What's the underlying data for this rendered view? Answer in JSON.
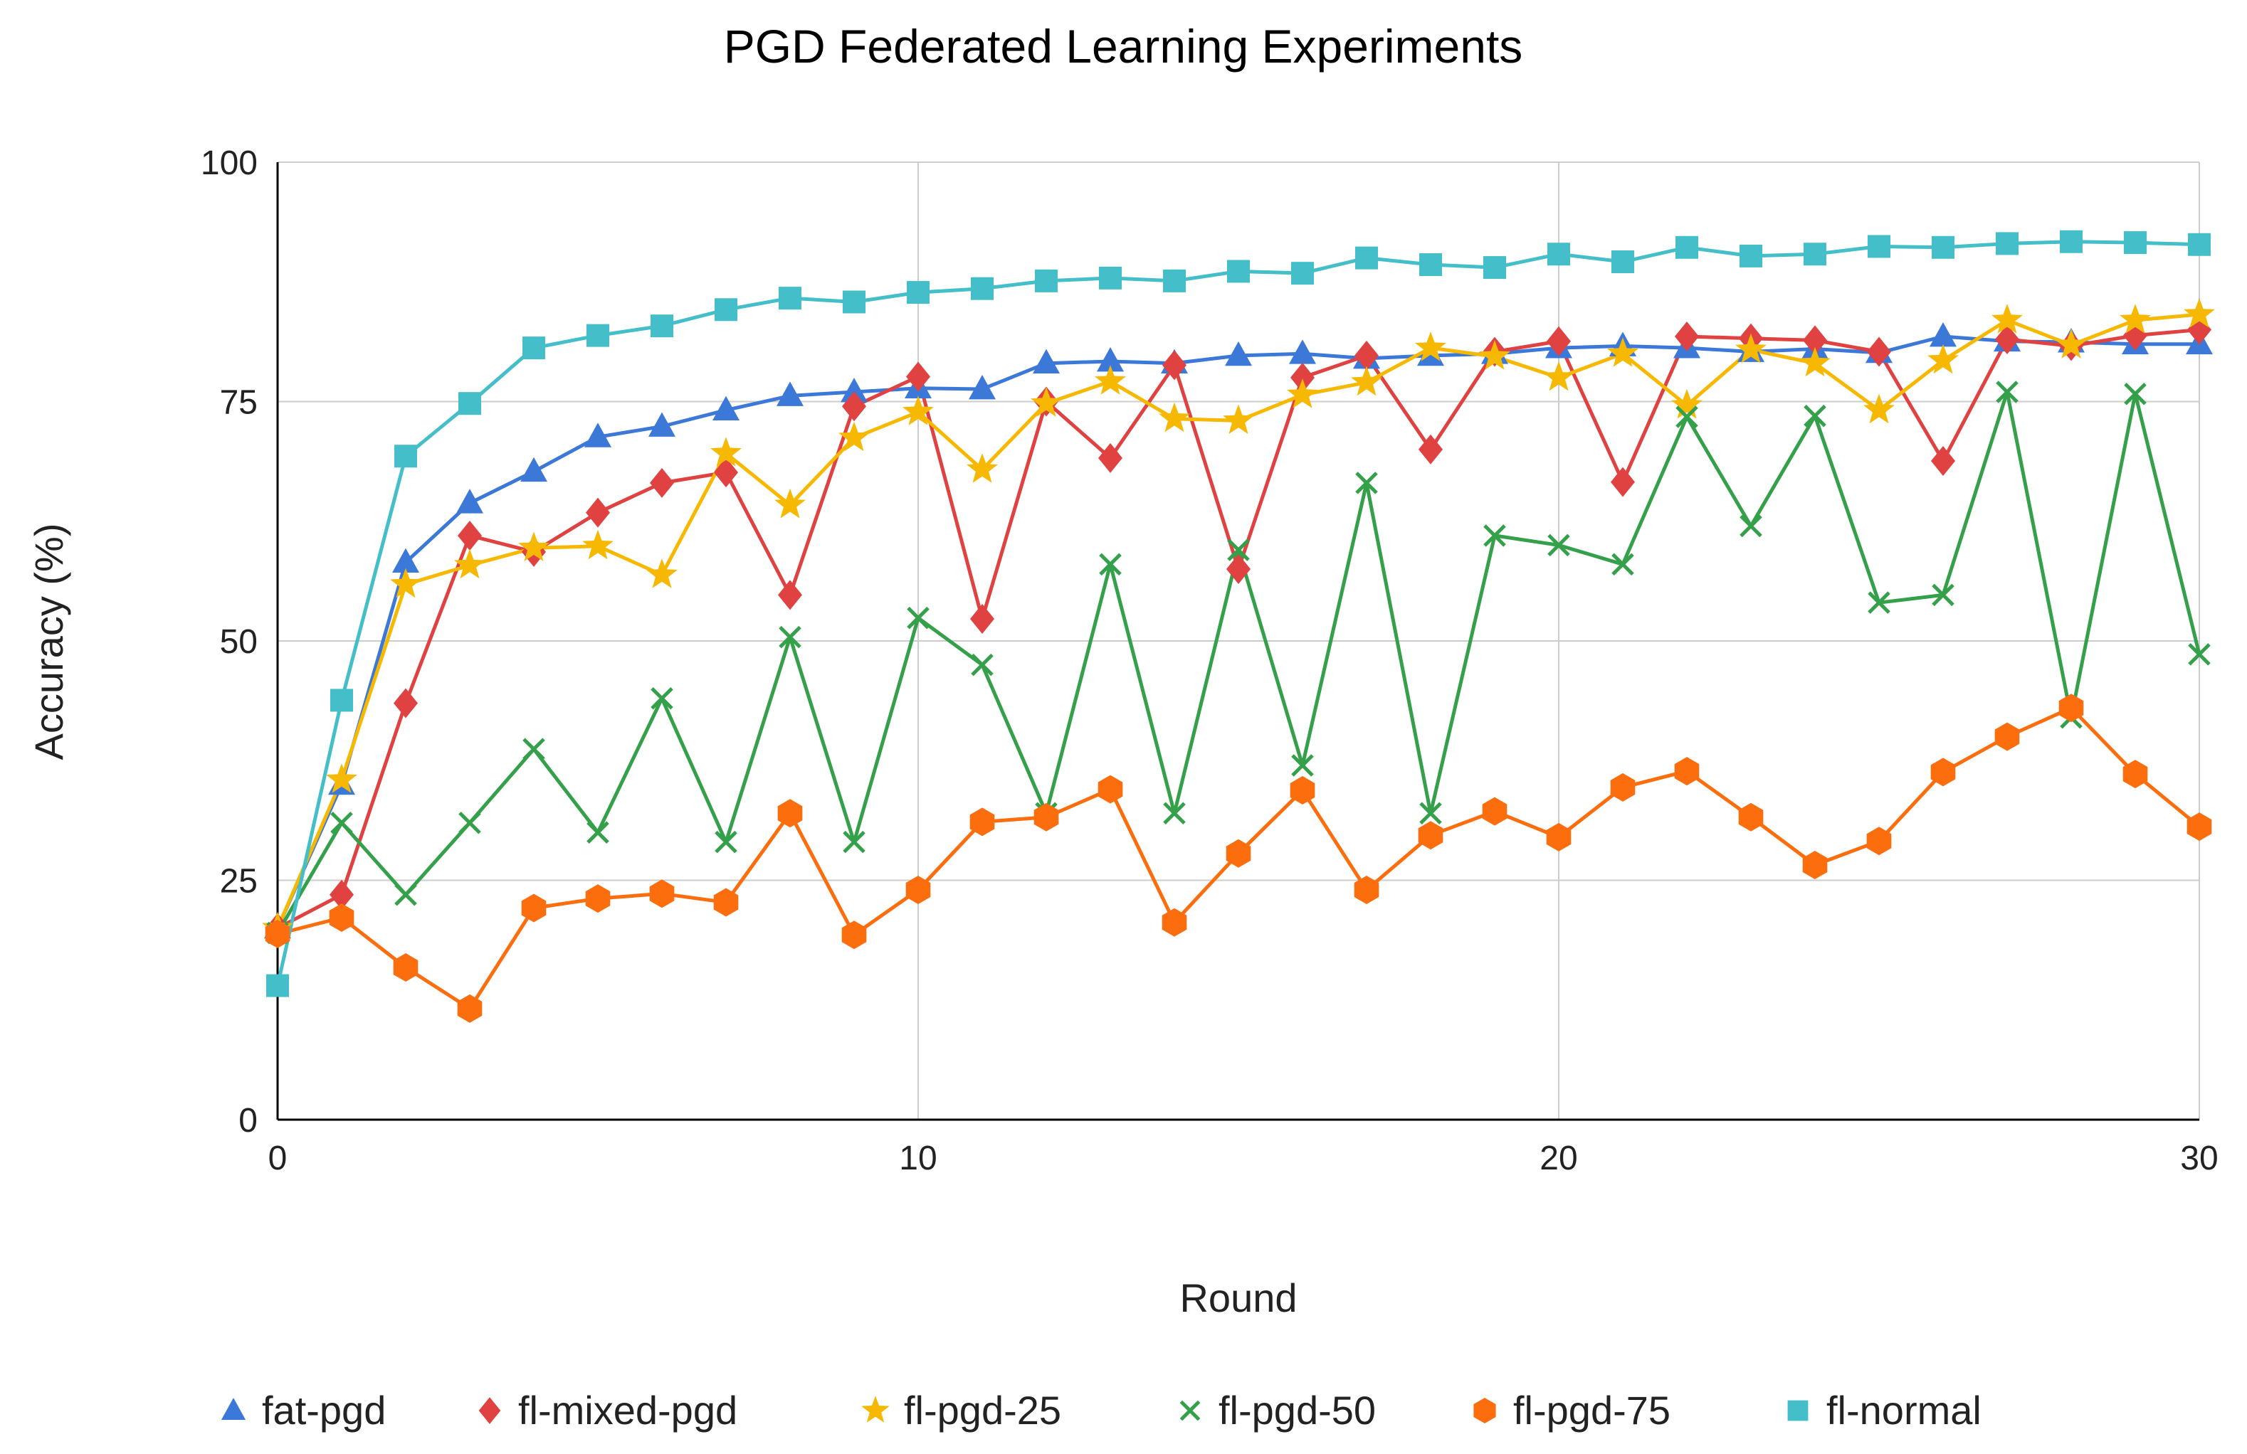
{
  "chart_data": {
    "type": "line",
    "title": "PGD Federated Learning Experiments",
    "xlabel": "Round",
    "ylabel": "Accuracy (%)",
    "xlim": [
      0,
      30
    ],
    "ylim": [
      0,
      100
    ],
    "xticks": [
      0,
      10,
      20,
      30
    ],
    "yticks": [
      0,
      25,
      50,
      75,
      100
    ],
    "grid": true,
    "legend_position": "bottom",
    "x": [
      0,
      1,
      2,
      3,
      4,
      5,
      6,
      7,
      8,
      9,
      10,
      11,
      12,
      13,
      14,
      15,
      16,
      17,
      18,
      19,
      20,
      21,
      22,
      23,
      24,
      25,
      26,
      27,
      28,
      29,
      30
    ],
    "series": [
      {
        "name": "fat-pgd",
        "color": "#3c78d8",
        "marker": "triangle",
        "values": [
          20,
          35,
          58.2,
          64.4,
          67.7,
          71.3,
          72.4,
          74.1,
          75.6,
          76,
          76.4,
          76.3,
          79,
          79.2,
          79,
          79.8,
          80,
          79.5,
          79.8,
          80,
          80.6,
          80.8,
          80.6,
          80.2,
          80.5,
          80.1,
          81.8,
          81.3,
          81.2,
          81,
          81
        ]
      },
      {
        "name": "fl-mixed-pgd",
        "color": "#e04141",
        "marker": "diamond",
        "values": [
          20,
          23.5,
          43.5,
          61,
          59.3,
          63.4,
          66.5,
          67.6,
          54.8,
          74.5,
          77.6,
          52.3,
          75,
          69.1,
          78.8,
          57.5,
          77.5,
          79.8,
          70,
          80.2,
          81.3,
          66.6,
          81.8,
          81.6,
          81.4,
          80.2,
          68.8,
          81.5,
          80.8,
          81.9,
          82.5
        ]
      },
      {
        "name": "fl-pgd-25",
        "color": "#f6b800",
        "marker": "star",
        "values": [
          20,
          35.5,
          55.9,
          57.9,
          59.7,
          59.9,
          56.9,
          69.6,
          64.2,
          71.2,
          73.9,
          67.9,
          74.8,
          77.1,
          73.2,
          73,
          75.7,
          77,
          80.6,
          79.7,
          77.5,
          80,
          74.6,
          80.4,
          79,
          74.1,
          79.3,
          83.5,
          80.9,
          83.5,
          84.1
        ]
      },
      {
        "name": "fl-pgd-50",
        "color": "#34a04a",
        "marker": "x",
        "values": [
          19.5,
          31,
          23.5,
          31,
          38.7,
          30,
          44,
          29,
          50.4,
          29,
          52.4,
          47.5,
          32,
          58,
          32,
          59.5,
          37,
          66.5,
          32,
          61,
          60,
          58,
          73.4,
          62,
          73.5,
          54,
          54.8,
          76,
          42,
          75.8,
          48.6
        ]
      },
      {
        "name": "fl-pgd-75",
        "color": "#fb6d0d",
        "marker": "hexagon",
        "values": [
          19.4,
          21.1,
          15.9,
          11.6,
          22.1,
          23.1,
          23.6,
          22.7,
          32,
          19.3,
          24,
          31.1,
          31.6,
          34.5,
          20.6,
          27.8,
          34.4,
          24,
          29.7,
          32.2,
          29.5,
          34.7,
          36.4,
          31.6,
          26.6,
          29.1,
          36.3,
          40,
          43,
          36.1,
          30.6
        ]
      },
      {
        "name": "fl-normal",
        "color": "#44bfc9",
        "marker": "square",
        "values": [
          14,
          43.8,
          69.3,
          74.8,
          80.6,
          81.9,
          82.9,
          84.6,
          85.8,
          85.4,
          86.4,
          86.8,
          87.6,
          87.9,
          87.6,
          88.6,
          88.4,
          90,
          89.3,
          89,
          90.4,
          89.6,
          91.1,
          90.2,
          90.4,
          91.2,
          91.1,
          91.5,
          91.7,
          91.6,
          91.4
        ]
      }
    ]
  }
}
